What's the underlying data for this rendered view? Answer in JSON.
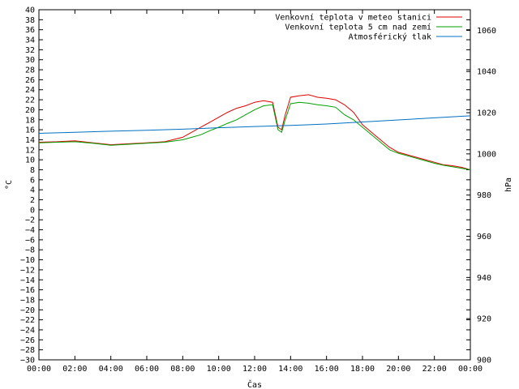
{
  "chart_data": {
    "type": "line",
    "xlabel": "Čas",
    "ylabel_left": "°C",
    "ylabel_right": "hPa",
    "x_ticks": [
      "00:00",
      "02:00",
      "04:00",
      "06:00",
      "08:00",
      "10:00",
      "12:00",
      "14:00",
      "16:00",
      "18:00",
      "20:00",
      "22:00",
      "00:00"
    ],
    "x_range_hours": [
      0,
      24
    ],
    "ylim_left": [
      -30,
      40
    ],
    "ylim_right": [
      900,
      1070
    ],
    "left_ticks": [
      40,
      38,
      36,
      34,
      32,
      30,
      28,
      26,
      24,
      22,
      20,
      18,
      16,
      14,
      12,
      10,
      8,
      6,
      4,
      2,
      0,
      -2,
      -4,
      -6,
      -8,
      -10,
      -12,
      -14,
      -16,
      -18,
      -20,
      -22,
      -24,
      -26,
      -28,
      -30
    ],
    "left_tick_labels": [
      "40",
      "38",
      "36",
      "34",
      "32",
      "30",
      "28",
      "26",
      "24",
      "22",
      "20",
      "18",
      "16",
      "14",
      "12",
      "10",
      "8",
      "6",
      "4",
      "2",
      "0",
      "−2",
      "−4",
      "−6",
      "−8",
      "−10",
      "−12",
      "−14",
      "−16",
      "−18",
      "−20",
      "−22",
      "−24",
      "−26",
      "−28",
      "−30"
    ],
    "right_ticks": [
      1060,
      1040,
      1020,
      1000,
      980,
      960,
      940,
      920,
      900
    ],
    "right_tick_labels": [
      "1060",
      "1040",
      "1020",
      "1000",
      "980",
      "960",
      "940",
      "920",
      "900"
    ],
    "grid": false,
    "legend_position": "top-right",
    "series": [
      {
        "name": "Venkovní teplota v meteo stanici",
        "color": "#e00000",
        "axis": "left",
        "x": [
          0,
          1,
          2,
          3,
          4,
          5,
          6,
          7,
          8,
          8.5,
          9,
          9.5,
          10,
          10.5,
          11,
          11.5,
          12,
          12.5,
          13,
          13.3,
          13.5,
          13.7,
          14,
          14.5,
          15,
          15.5,
          16,
          16.5,
          17,
          17.5,
          18,
          18.5,
          19,
          19.5,
          20,
          20.5,
          21,
          21.5,
          22,
          22.5,
          23,
          23.5,
          24
        ],
        "y": [
          13.5,
          13.6,
          13.8,
          13.4,
          13,
          13.2,
          13.4,
          13.6,
          14.5,
          15.5,
          16.5,
          17.5,
          18.5,
          19.5,
          20.3,
          20.8,
          21.5,
          21.8,
          21.5,
          16.5,
          16,
          19,
          22.5,
          22.8,
          23,
          22.5,
          22.3,
          22,
          21,
          19.5,
          17,
          15.5,
          14,
          12.5,
          11.5,
          11,
          10.5,
          10,
          9.5,
          9,
          8.8,
          8.5,
          8
        ]
      },
      {
        "name": "Venkovní teplota 5 cm nad zemí",
        "color": "#00a000",
        "axis": "left",
        "x": [
          0,
          1,
          2,
          3,
          4,
          5,
          6,
          7,
          8,
          8.5,
          9,
          9.5,
          10,
          10.5,
          11,
          11.5,
          12,
          12.5,
          13,
          13.3,
          13.5,
          13.7,
          14,
          14.5,
          15,
          15.5,
          16,
          16.5,
          17,
          17.5,
          18,
          18.5,
          19,
          19.5,
          20,
          20.5,
          21,
          21.5,
          22,
          22.5,
          23,
          23.5,
          24
        ],
        "y": [
          13.4,
          13.5,
          13.6,
          13.3,
          12.9,
          13.1,
          13.3,
          13.5,
          14,
          14.5,
          15,
          15.8,
          16.5,
          17.3,
          18,
          19,
          20,
          20.8,
          21,
          16,
          15.5,
          18,
          21.2,
          21.5,
          21.3,
          21,
          20.8,
          20.5,
          19,
          18,
          16.5,
          15,
          13.5,
          12,
          11.3,
          10.8,
          10.3,
          9.8,
          9.3,
          8.9,
          8.6,
          8.3,
          8
        ]
      },
      {
        "name": "Atmosférický tlak",
        "color": "#0070c0",
        "axis": "right",
        "x": [
          0,
          2,
          4,
          6,
          8,
          10,
          12,
          14,
          16,
          18,
          20,
          22,
          24
        ],
        "y": [
          1010,
          1010.5,
          1011,
          1011.5,
          1012,
          1012.7,
          1013.3,
          1013.8,
          1014.5,
          1015.5,
          1016.5,
          1017.5,
          1018.5
        ]
      }
    ]
  }
}
